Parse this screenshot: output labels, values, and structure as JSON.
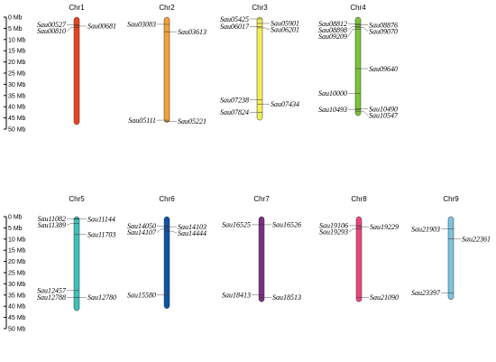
{
  "scale": {
    "unit": "Mb",
    "ticks": [
      "0 Mb",
      "5 Mb",
      "10 Mb",
      "15 Mb",
      "20 Mb",
      "25 Mb",
      "30 Mb",
      "35 Mb",
      "40 Mb",
      "45 Mb",
      "50 Mb"
    ]
  },
  "chromosomes": [
    {
      "name": "Chr1",
      "length_mb": 48,
      "color": "#e8441e",
      "genes": [
        {
          "id": "Sau00527",
          "pos": 3.4,
          "side": "left"
        },
        {
          "id": "Sau00681",
          "pos": 4.0,
          "side": "right"
        },
        {
          "id": "Sau00810",
          "pos": 4.6,
          "side": "left"
        }
      ]
    },
    {
      "name": "Chr2",
      "length_mb": 47,
      "color": "#f3a23a",
      "genes": [
        {
          "id": "Sau03083",
          "pos": 3.2,
          "side": "left"
        },
        {
          "id": "Sau03613",
          "pos": 6.5,
          "side": "right"
        },
        {
          "id": "Sau05111",
          "pos": 46.0,
          "side": "left"
        },
        {
          "id": "Sau05221",
          "pos": 46.5,
          "side": "right"
        }
      ]
    },
    {
      "name": "Chr3",
      "length_mb": 46,
      "color": "#f1ee5a",
      "genes": [
        {
          "id": "Sau05425",
          "pos": 0.8,
          "side": "left"
        },
        {
          "id": "Sau05901",
          "pos": 2.8,
          "side": "right"
        },
        {
          "id": "Sau06017",
          "pos": 4.2,
          "side": "left"
        },
        {
          "id": "Sau06201",
          "pos": 4.8,
          "side": "right"
        },
        {
          "id": "Sau07238",
          "pos": 37.0,
          "side": "left"
        },
        {
          "id": "Sau07434",
          "pos": 38.8,
          "side": "right"
        },
        {
          "id": "Sau07824",
          "pos": 42.5,
          "side": "left"
        }
      ]
    },
    {
      "name": "Chr4",
      "length_mb": 44,
      "color": "#7cc33a",
      "genes": [
        {
          "id": "Sau08812",
          "pos": 3.0,
          "side": "left"
        },
        {
          "id": "Sau08876",
          "pos": 3.5,
          "side": "right"
        },
        {
          "id": "Sau08898",
          "pos": 4.2,
          "side": "left"
        },
        {
          "id": "Sau09070",
          "pos": 4.6,
          "side": "right"
        },
        {
          "id": "Sau09209",
          "pos": 5.5,
          "side": "left"
        },
        {
          "id": "Sau09640",
          "pos": 23.0,
          "side": "right"
        },
        {
          "id": "Sau10000",
          "pos": 34.0,
          "side": "left"
        },
        {
          "id": "Sau10490",
          "pos": 41.0,
          "side": "right"
        },
        {
          "id": "Sau10493",
          "pos": 41.2,
          "side": "left"
        },
        {
          "id": "Sau10547",
          "pos": 42.0,
          "side": "right"
        }
      ]
    },
    {
      "name": "Chr5",
      "length_mb": 42,
      "color": "#3cc0bb",
      "genes": [
        {
          "id": "Sau11082",
          "pos": 0.9,
          "side": "left"
        },
        {
          "id": "Sau11144",
          "pos": 1.1,
          "side": "right"
        },
        {
          "id": "Sau11389",
          "pos": 3.0,
          "side": "left"
        },
        {
          "id": "Sau11703",
          "pos": 8.0,
          "side": "right"
        },
        {
          "id": "Sau12457",
          "pos": 33.0,
          "side": "left"
        },
        {
          "id": "Sau12780",
          "pos": 36.0,
          "side": "right"
        },
        {
          "id": "Sau12788",
          "pos": 36.0,
          "side": "left"
        }
      ]
    },
    {
      "name": "Chr6",
      "length_mb": 41,
      "color": "#0e53a6",
      "genes": [
        {
          "id": "Sau14050",
          "pos": 4.2,
          "side": "left"
        },
        {
          "id": "Sau14103",
          "pos": 4.5,
          "side": "right"
        },
        {
          "id": "Sau14107",
          "pos": 5.6,
          "side": "left"
        },
        {
          "id": "Sau14444",
          "pos": 6.5,
          "side": "right"
        },
        {
          "id": "Sau15580",
          "pos": 35.0,
          "side": "left"
        }
      ]
    },
    {
      "name": "Chr7",
      "length_mb": 38,
      "color": "#7b2f84",
      "genes": [
        {
          "id": "Sau16525",
          "pos": 3.6,
          "side": "left"
        },
        {
          "id": "Sau16526",
          "pos": 3.6,
          "side": "right"
        },
        {
          "id": "Sau18413",
          "pos": 35.0,
          "side": "left"
        },
        {
          "id": "Sau18513",
          "pos": 36.0,
          "side": "right"
        }
      ]
    },
    {
      "name": "Chr8",
      "length_mb": 38,
      "color": "#e9487a",
      "genes": [
        {
          "id": "Sau19106",
          "pos": 4.0,
          "side": "left"
        },
        {
          "id": "Sau19229",
          "pos": 4.5,
          "side": "right"
        },
        {
          "id": "Sau19293",
          "pos": 5.5,
          "side": "left"
        },
        {
          "id": "Sau21090",
          "pos": 36.0,
          "side": "right"
        }
      ]
    },
    {
      "name": "Chr9",
      "length_mb": 37,
      "color": "#7cc4dd",
      "genes": [
        {
          "id": "Sau21903",
          "pos": 5.5,
          "side": "left"
        },
        {
          "id": "Sau22361",
          "pos": 10.0,
          "side": "right"
        },
        {
          "id": "Sau23397",
          "pos": 34.0,
          "side": "left"
        }
      ]
    }
  ]
}
